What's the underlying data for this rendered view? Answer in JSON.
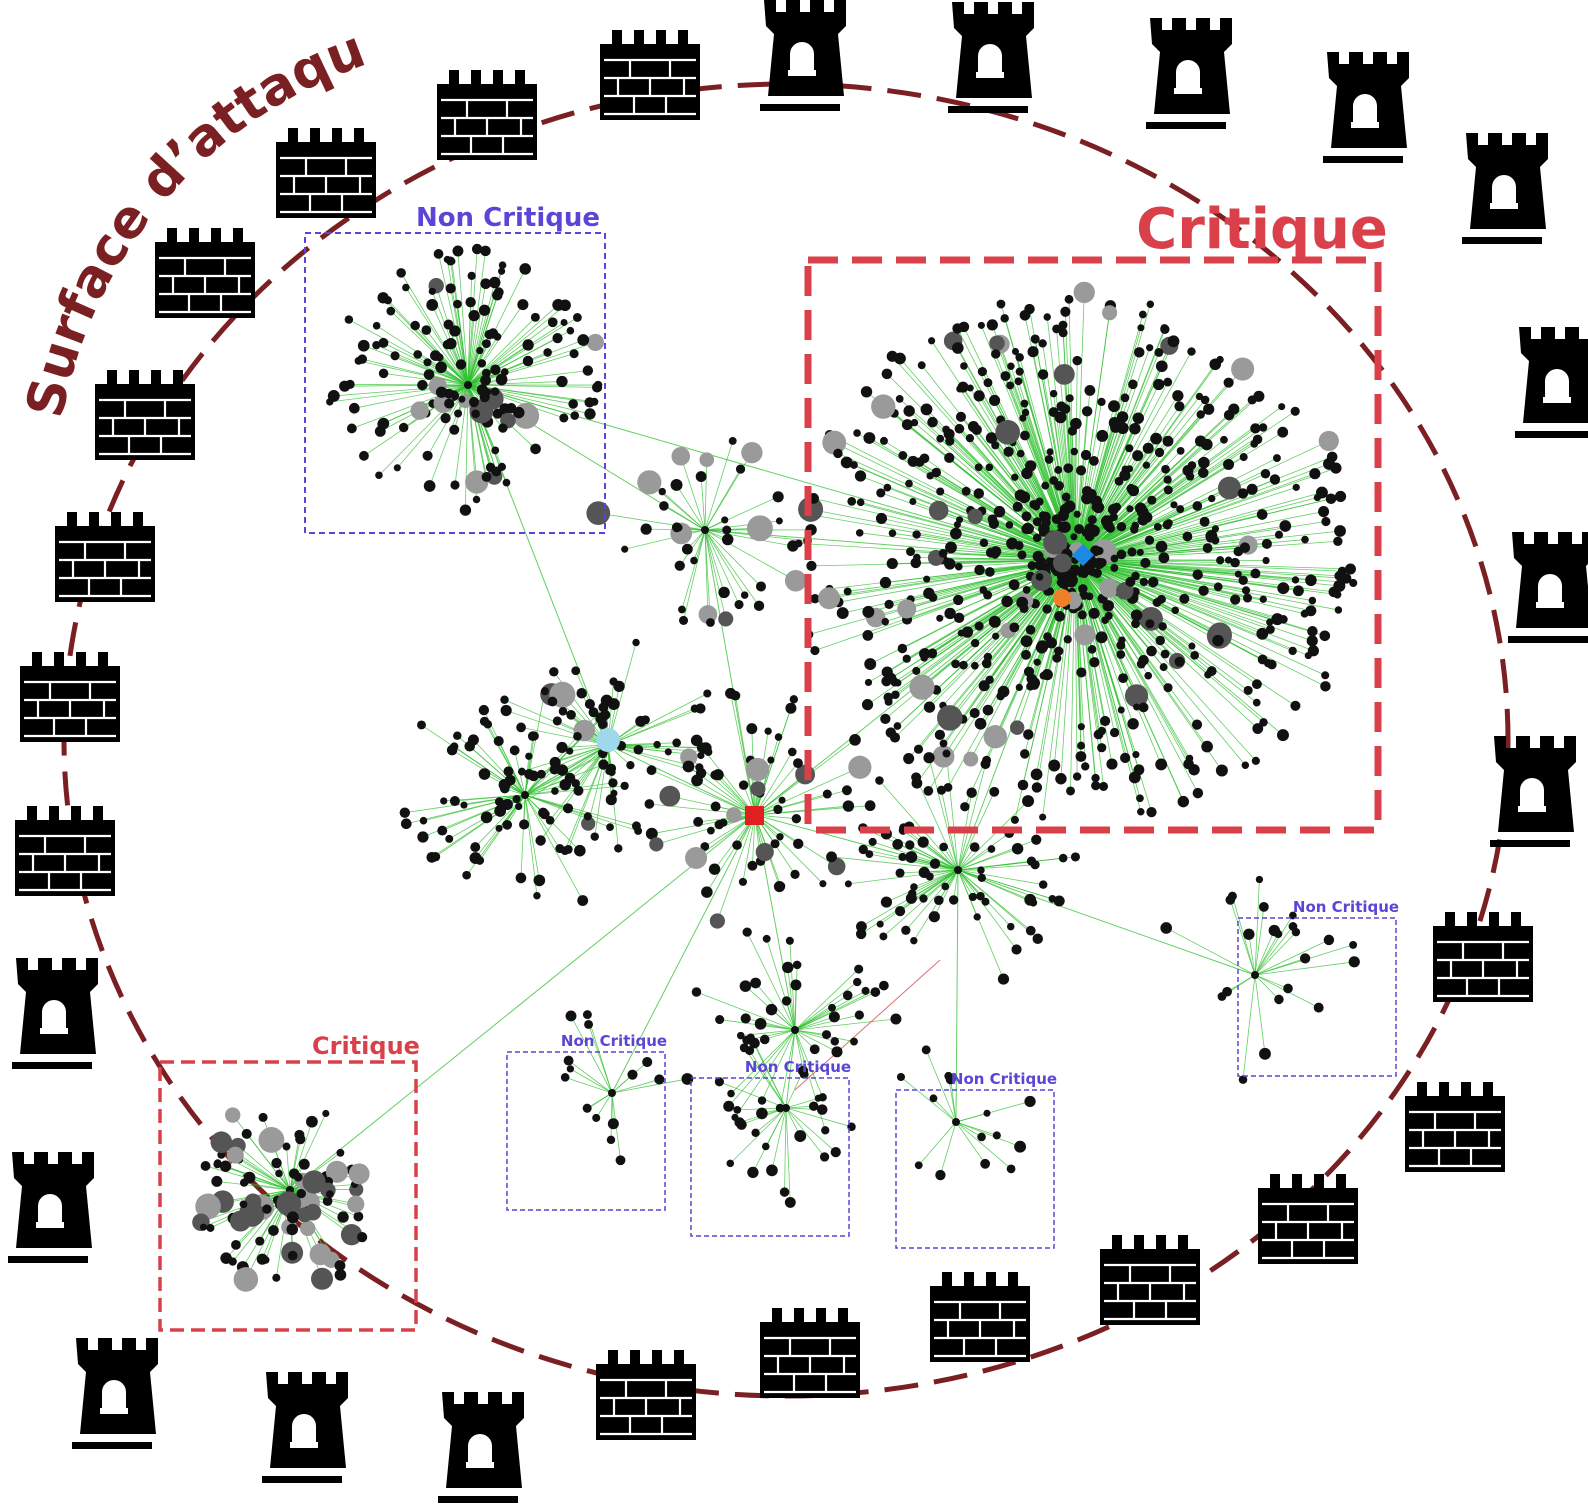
{
  "perimeter": {
    "label": "Surface d’attaque",
    "label_color": "#7a1f22",
    "line_color": "#7a1f22",
    "icons": [
      "castle-wall-icon",
      "castle-tower-icon"
    ]
  },
  "zones": [
    {
      "id": "nc-top-left",
      "label": "Non Critique",
      "kind": "non-critique"
    },
    {
      "id": "critique-main",
      "label": "Critique",
      "kind": "critique"
    },
    {
      "id": "nc-right",
      "label": "Non Critique",
      "kind": "non-critique"
    },
    {
      "id": "critique-bottom-left",
      "label": "Critique",
      "kind": "critique"
    },
    {
      "id": "nc-bottom-1",
      "label": "Non Critique",
      "kind": "non-critique"
    },
    {
      "id": "nc-bottom-2",
      "label": "Non Critique",
      "kind": "non-critique"
    },
    {
      "id": "nc-bottom-3",
      "label": "Non Critique",
      "kind": "non-critique"
    }
  ],
  "colors": {
    "critique": "#d9404a",
    "non_critique": "#5b45d6",
    "edge": "#2fbf2f",
    "node": "#111111",
    "node_grey": "#555555",
    "node_light": "#9a9a9a",
    "marker_red": "#e02020",
    "marker_blue": "#1e88e5",
    "marker_orange": "#f07f2a",
    "marker_lightblue": "#9fd8ea"
  }
}
